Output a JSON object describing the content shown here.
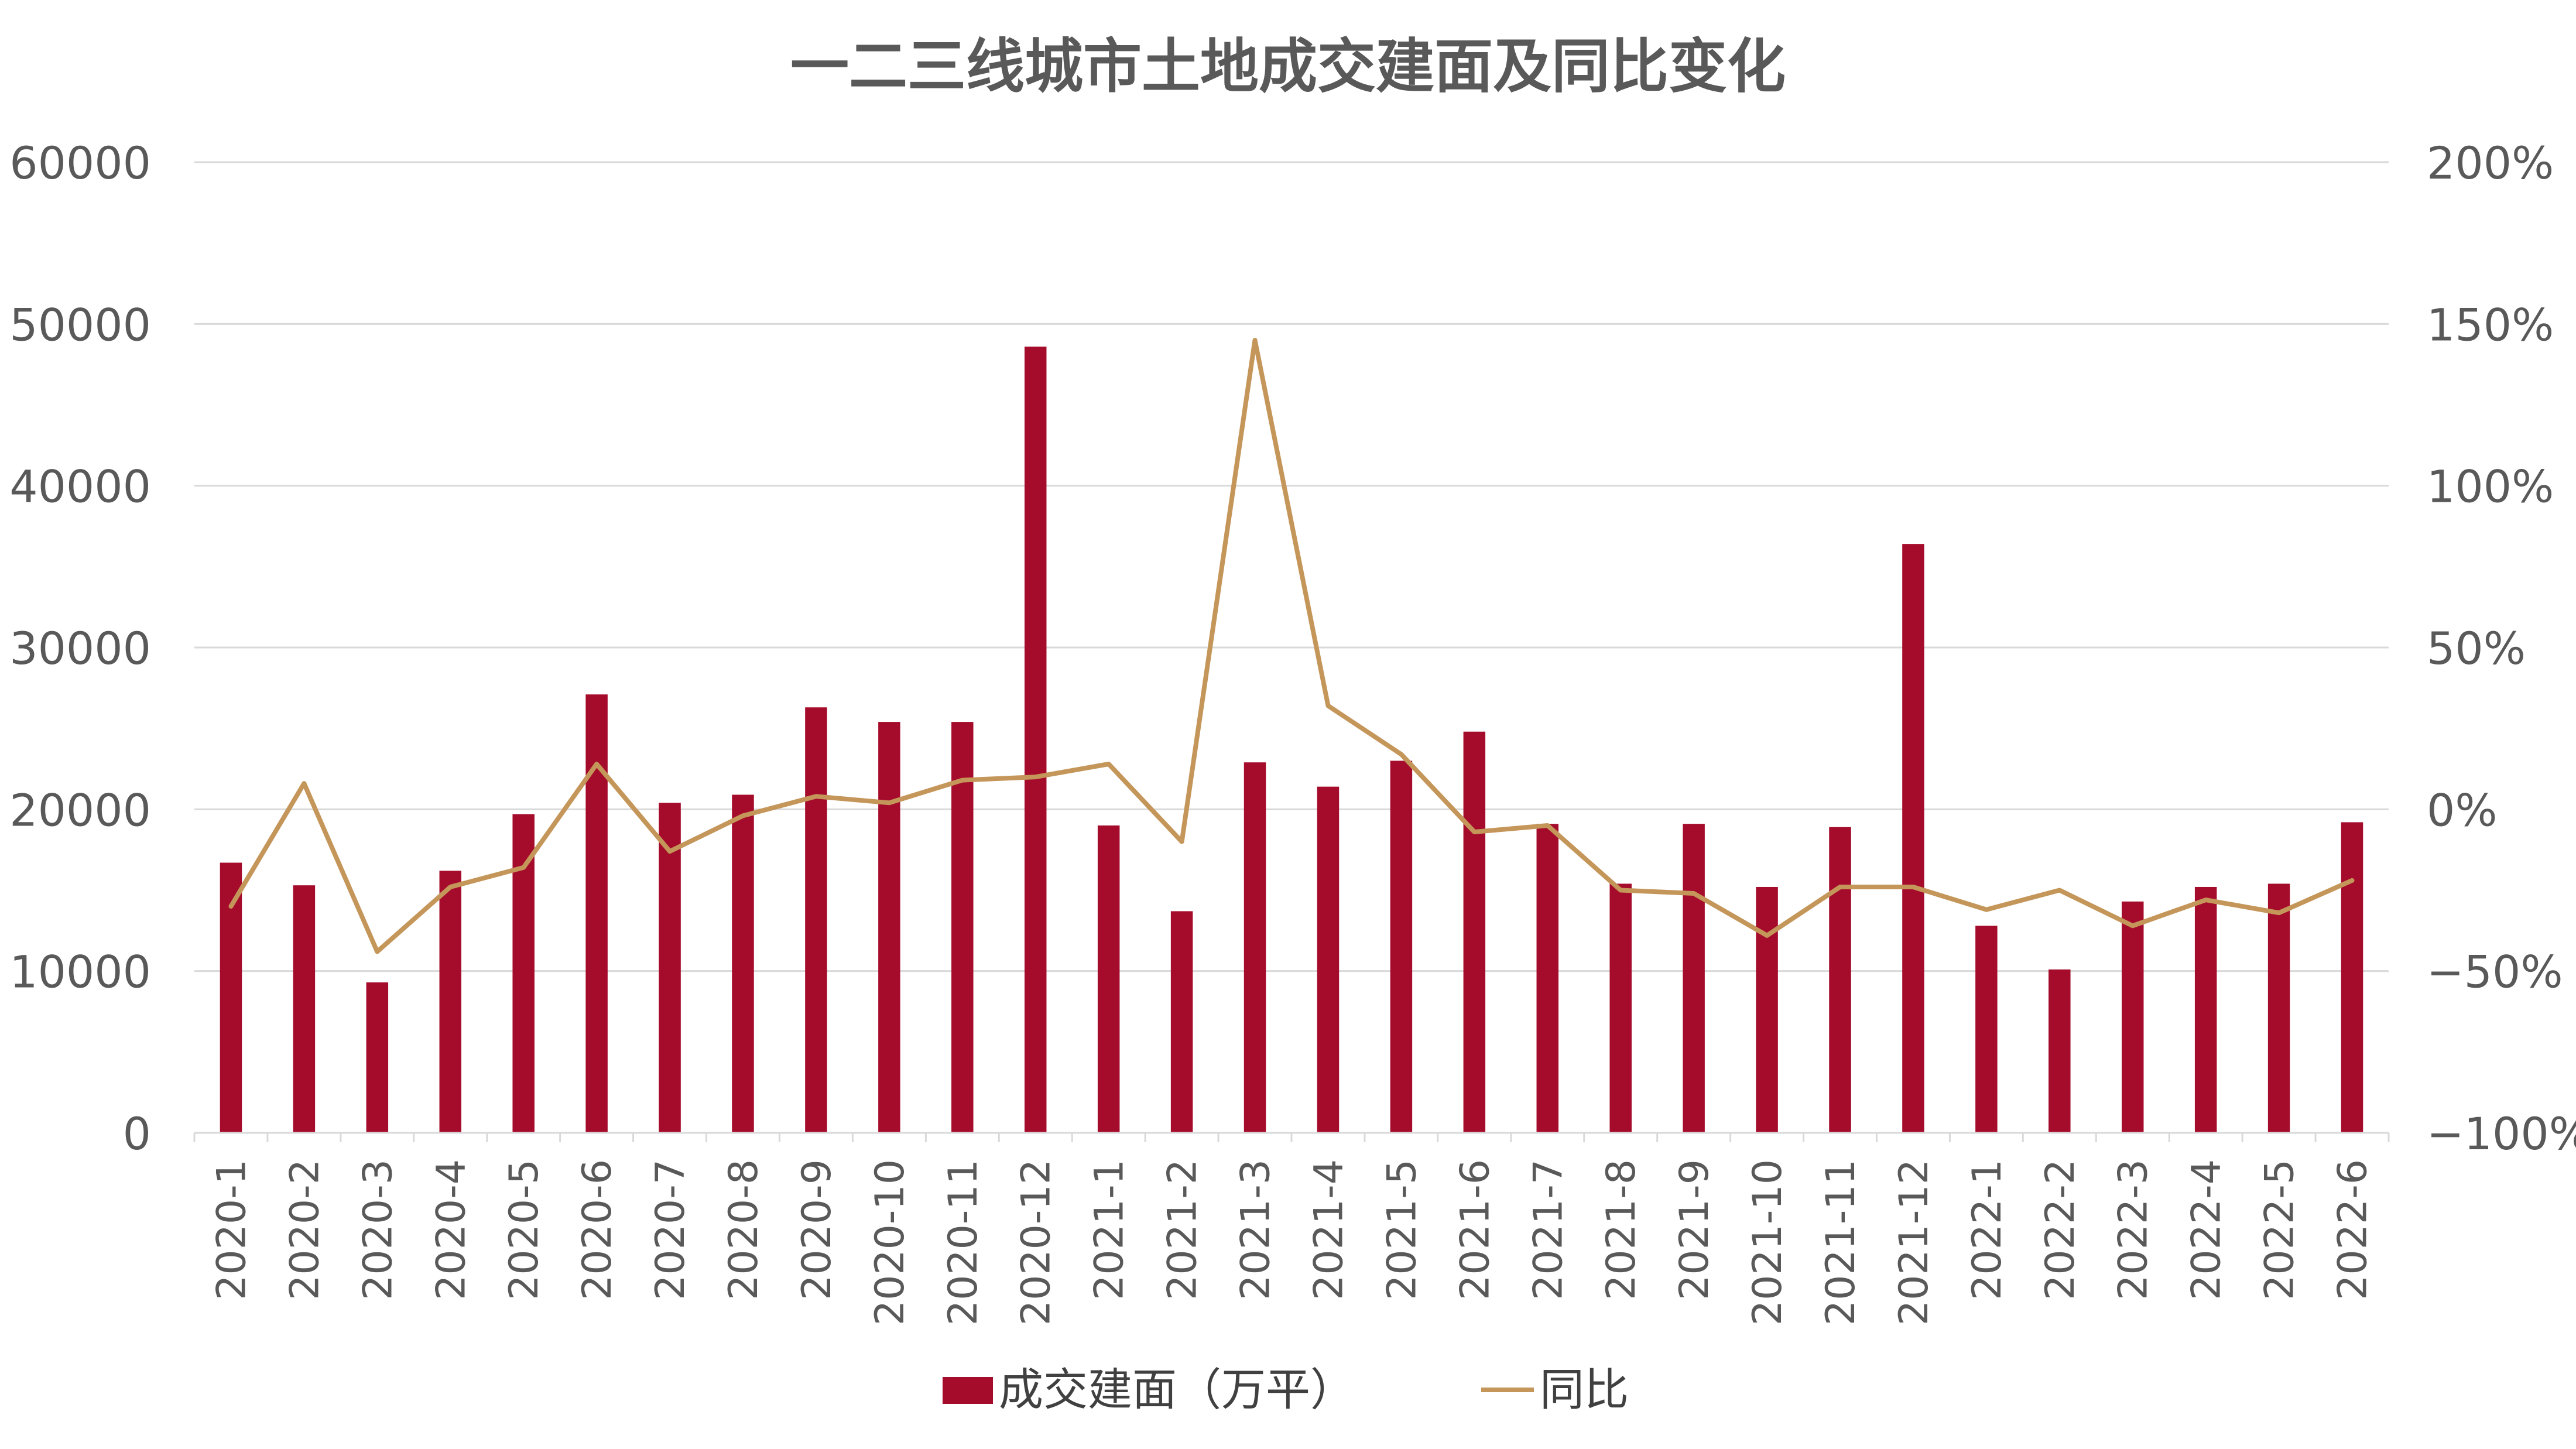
{
  "chart_data": {
    "type": "bar",
    "title": "一二三线城市土地成交建面及同比变化",
    "categories": [
      "2020-1",
      "2020-2",
      "2020-3",
      "2020-4",
      "2020-5",
      "2020-6",
      "2020-7",
      "2020-8",
      "2020-9",
      "2020-10",
      "2020-11",
      "2020-12",
      "2021-1",
      "2021-2",
      "2021-3",
      "2021-4",
      "2021-5",
      "2021-6",
      "2021-7",
      "2021-8",
      "2021-9",
      "2021-10",
      "2021-11",
      "2021-12",
      "2022-1",
      "2022-2",
      "2022-3",
      "2022-4",
      "2022-5",
      "2022-6"
    ],
    "series": [
      {
        "name": "成交建面（万平）",
        "type": "bar",
        "axis": "left",
        "color": "#A50B2B",
        "values": [
          16700,
          15300,
          9300,
          16200,
          19700,
          27100,
          20400,
          20900,
          26300,
          25400,
          25400,
          48600,
          19000,
          13700,
          22900,
          21400,
          23000,
          24800,
          19100,
          15400,
          19100,
          15200,
          18900,
          36400,
          12800,
          10100,
          14300,
          15200,
          15400,
          19200
        ]
      },
      {
        "name": "同比",
        "type": "line",
        "axis": "right",
        "color": "#C4965A",
        "values": [
          -0.3,
          0.08,
          -0.44,
          -0.24,
          -0.18,
          0.14,
          -0.13,
          -0.02,
          0.04,
          0.02,
          0.09,
          0.1,
          0.14,
          -0.1,
          1.45,
          0.32,
          0.17,
          -0.07,
          -0.05,
          -0.25,
          -0.26,
          -0.39,
          -0.24,
          -0.24,
          -0.31,
          -0.25,
          -0.36,
          -0.28,
          -0.32,
          -0.22
        ]
      }
    ],
    "y_left": {
      "ylim": [
        0,
        60000
      ],
      "ticks": [
        0,
        10000,
        20000,
        30000,
        40000,
        50000,
        60000
      ],
      "tick_labels": [
        "0",
        "10000",
        "20000",
        "30000",
        "40000",
        "50000",
        "60000"
      ]
    },
    "y_right": {
      "ylim": [
        -1.0,
        2.0
      ],
      "ticks": [
        -1.0,
        -0.5,
        0,
        0.5,
        1.0,
        1.5,
        2.0
      ],
      "tick_labels": [
        "−100%",
        "−50%",
        "0%",
        "50%",
        "100%",
        "150%",
        "200%"
      ]
    },
    "grid": true,
    "legend": "bottom",
    "tick_color": "#595959",
    "grid_color": "#D9D9D9"
  }
}
